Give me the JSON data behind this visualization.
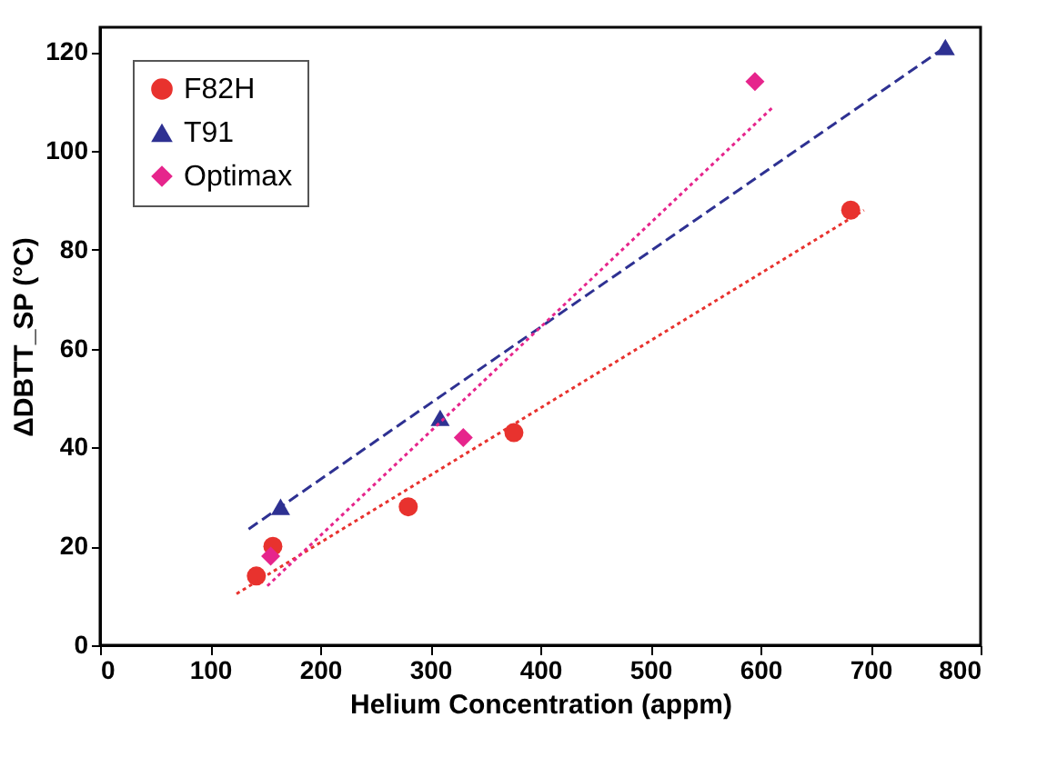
{
  "chart_data": {
    "type": "scatter",
    "xlabel": "Helium Concentration (appm)",
    "ylabel": "ΔDBTT_SP (°C)",
    "xlim": [
      0,
      800
    ],
    "xticks": [
      0,
      100,
      200,
      300,
      400,
      500,
      600,
      700,
      800
    ],
    "ylim": [
      0,
      125
    ],
    "yticks": [
      0,
      20,
      40,
      60,
      80,
      100,
      120
    ],
    "grid": false,
    "legend": "top left",
    "series": [
      {
        "name": "F82H",
        "color": "#e8322e",
        "marker": "circle",
        "x": [
          142,
          157,
          280,
          376,
          682
        ],
        "values": [
          14,
          20,
          28,
          43,
          88
        ]
      },
      {
        "name": "T91",
        "color": "#2e3192",
        "marker": "triangle",
        "x": [
          164,
          309,
          768
        ],
        "values": [
          28,
          46,
          121
        ]
      },
      {
        "name": "Optimax",
        "color": "#e6258c",
        "marker": "diamond",
        "x": [
          155,
          330,
          595
        ],
        "values": [
          18,
          42,
          114
        ]
      },
      {
        "type": "line",
        "color": "#e8322e",
        "line_style": "dotted",
        "x": [
          124,
          694
        ],
        "values": [
          10.4,
          88
        ]
      },
      {
        "type": "line",
        "color": "#2e3192",
        "line_style": "dashed",
        "x": [
          135,
          768
        ],
        "values": [
          23.5,
          121
        ]
      },
      {
        "type": "line",
        "color": "#e6258c",
        "line_style": "dotted",
        "x": [
          152,
          612
        ],
        "values": [
          12,
          109
        ]
      }
    ]
  }
}
